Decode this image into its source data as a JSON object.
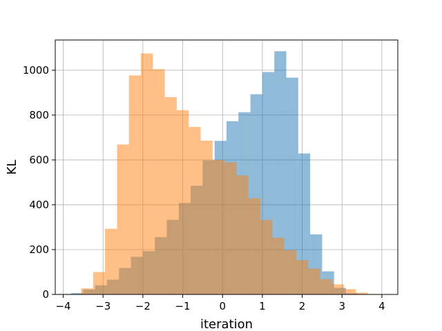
{
  "chart_data": {
    "type": "bar",
    "title": "",
    "xlabel": "iteration",
    "ylabel": "KL",
    "xlim": [
      -4.2,
      4.4
    ],
    "ylim": [
      0,
      1135
    ],
    "xticks": [
      -4,
      -3,
      -2,
      -1,
      0,
      1,
      2,
      3,
      4
    ],
    "yticks": [
      0,
      200,
      400,
      600,
      800,
      1000
    ],
    "grid": true,
    "legend": "none",
    "bin_width": 0.3,
    "series": [
      {
        "color": "#1f77b4",
        "opacity": 0.5,
        "bins": [
          [
            -3.95,
            2
          ],
          [
            -3.65,
            6
          ],
          [
            -3.35,
            22
          ],
          [
            -3.05,
            41
          ],
          [
            -2.75,
            66
          ],
          [
            -2.45,
            118
          ],
          [
            -2.15,
            168
          ],
          [
            -1.85,
            193
          ],
          [
            -1.55,
            256
          ],
          [
            -1.25,
            333
          ],
          [
            -0.95,
            408
          ],
          [
            -0.65,
            485
          ],
          [
            -0.35,
            598
          ],
          [
            -0.05,
            685
          ],
          [
            0.25,
            773
          ],
          [
            0.55,
            813
          ],
          [
            0.85,
            893
          ],
          [
            1.15,
            992
          ],
          [
            1.45,
            1085
          ],
          [
            1.75,
            967
          ],
          [
            2.05,
            629
          ],
          [
            2.35,
            268
          ],
          [
            2.65,
            103
          ],
          [
            2.95,
            29
          ],
          [
            3.25,
            5
          ]
        ]
      },
      {
        "color": "#ff7f0e",
        "opacity": 0.5,
        "bins": [
          [
            -3.4,
            27
          ],
          [
            -3.1,
            100
          ],
          [
            -2.8,
            293
          ],
          [
            -2.5,
            669
          ],
          [
            -2.2,
            977
          ],
          [
            -1.9,
            1075
          ],
          [
            -1.6,
            1005
          ],
          [
            -1.3,
            880
          ],
          [
            -1.0,
            822
          ],
          [
            -0.7,
            747
          ],
          [
            -0.4,
            686
          ],
          [
            -0.1,
            600
          ],
          [
            0.2,
            589
          ],
          [
            0.5,
            531
          ],
          [
            0.8,
            429
          ],
          [
            1.1,
            332
          ],
          [
            1.4,
            253
          ],
          [
            1.7,
            198
          ],
          [
            2.0,
            153
          ],
          [
            2.3,
            115
          ],
          [
            2.6,
            68
          ],
          [
            2.9,
            45
          ],
          [
            3.2,
            24
          ],
          [
            3.5,
            8
          ],
          [
            3.8,
            2
          ]
        ]
      }
    ]
  }
}
